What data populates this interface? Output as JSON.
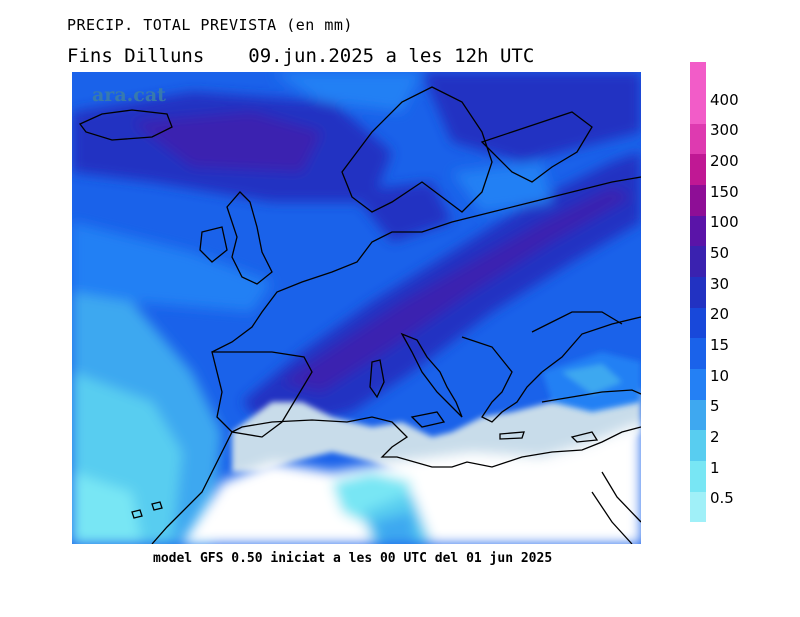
{
  "header": {
    "title": "PRECIP. TOTAL PREVISTA (en mm)",
    "subtitle_left": "Fins Dilluns",
    "subtitle_right": "09.jun.2025 a les 12h UTC"
  },
  "watermark": "ara.cat",
  "footer": "model GFS 0.50 iniciat a les 00 UTC del 01 jun 2025",
  "legend": {
    "items": [
      {
        "label": "0.5",
        "color": "#a0f0f8"
      },
      {
        "label": "1",
        "color": "#78e6f4"
      },
      {
        "label": "2",
        "color": "#58cdf0"
      },
      {
        "label": "5",
        "color": "#3ea8f0"
      },
      {
        "label": "10",
        "color": "#2480f4"
      },
      {
        "label": "15",
        "color": "#1a62ea"
      },
      {
        "label": "20",
        "color": "#1848da"
      },
      {
        "label": "30",
        "color": "#2232c2"
      },
      {
        "label": "50",
        "color": "#3a22b0"
      },
      {
        "label": "100",
        "color": "#5a14a8"
      },
      {
        "label": "150",
        "color": "#8e0e96"
      },
      {
        "label": "200",
        "color": "#c01894"
      },
      {
        "label": "300",
        "color": "#de3ab0"
      },
      {
        "label": "400",
        "color": "#f25cc8"
      }
    ]
  },
  "colors": {
    "land_dry": "#c8dcea",
    "no_precip": "#ffffff",
    "coastline": "#000000"
  }
}
